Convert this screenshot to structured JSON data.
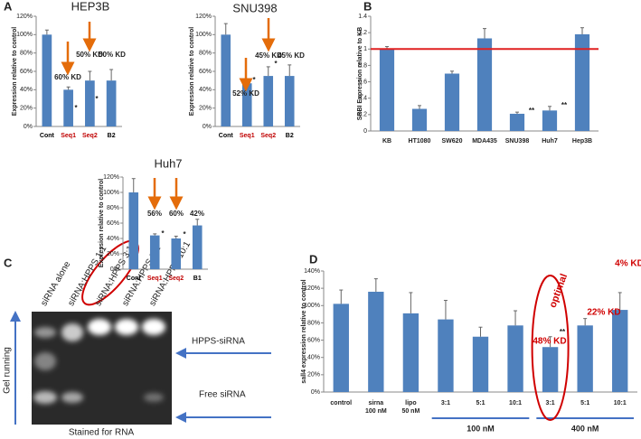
{
  "panels": [
    "A",
    "B",
    "C",
    "D"
  ],
  "chart_data": [
    {
      "type": "bar",
      "title": "HEP3B",
      "y_label": "Expression relative to control",
      "categories": [
        "Cont",
        "Seq1",
        "Seq2",
        "B2"
      ],
      "category_colors": [
        "#000000",
        "#c00000",
        "#c00000",
        "#000000"
      ],
      "values": [
        100,
        40,
        50,
        50
      ],
      "errors": [
        5,
        3,
        10,
        12
      ],
      "color": "#4f81bd",
      "ylim": [
        0,
        120
      ],
      "yticks": [
        {
          "value": 0,
          "label": "0%"
        },
        {
          "value": 20,
          "label": "20%"
        },
        {
          "value": 40,
          "label": "40%"
        },
        {
          "value": 60,
          "label": "60%"
        },
        {
          "value": 80,
          "label": "80%"
        },
        {
          "value": 100,
          "label": "100%"
        },
        {
          "value": 120,
          "label": "120%"
        }
      ],
      "annotations": [
        "60% KD",
        "50% KD",
        "50% KD",
        "*",
        "*"
      ]
    },
    {
      "type": "bar",
      "title": "SNU398",
      "y_label": "Expression relative to control",
      "categories": [
        "Cont",
        "Seq1",
        "Seq2",
        "B2"
      ],
      "category_colors": [
        "#000000",
        "#c00000",
        "#c00000",
        "#000000"
      ],
      "values": [
        100,
        47,
        55,
        55
      ],
      "errors": [
        12,
        4,
        10,
        12
      ],
      "color": "#4f81bd",
      "ylim": [
        0,
        120
      ],
      "yticks": [
        {
          "value": 0,
          "label": "0%"
        },
        {
          "value": 20,
          "label": "20%"
        },
        {
          "value": 40,
          "label": "40%"
        },
        {
          "value": 60,
          "label": "60%"
        },
        {
          "value": 80,
          "label": "80%"
        },
        {
          "value": 100,
          "label": "100%"
        },
        {
          "value": 120,
          "label": "120%"
        }
      ],
      "annotations": [
        "52% KD",
        "45% KD",
        "45% KD",
        "*",
        "*"
      ]
    },
    {
      "type": "bar",
      "title": "Huh7",
      "y_label": "Expression relative to control",
      "categories": [
        "Cont",
        "Seq1",
        "Seq2",
        "B1"
      ],
      "category_colors": [
        "#000000",
        "#c00000",
        "#c00000",
        "#000000"
      ],
      "values": [
        100,
        44,
        40,
        57
      ],
      "errors": [
        18,
        2,
        3,
        8
      ],
      "color": "#4f81bd",
      "ylim": [
        0,
        120
      ],
      "yticks": [
        {
          "value": 0,
          "label": "0%"
        },
        {
          "value": 20,
          "label": "20%"
        },
        {
          "value": 40,
          "label": "40%"
        },
        {
          "value": 60,
          "label": "60%"
        },
        {
          "value": 80,
          "label": "80%"
        },
        {
          "value": 100,
          "label": "100%"
        },
        {
          "value": 120,
          "label": "120%"
        }
      ],
      "annotations": [
        "56%",
        "60%",
        "42%",
        "*",
        "*"
      ]
    },
    {
      "type": "bar",
      "y_label": "SRBI Expression relative to KB",
      "categories": [
        "KB",
        "HT1080",
        "SW620",
        "MDA435",
        "SNU398",
        "Huh7",
        "Hep3B"
      ],
      "values": [
        1.0,
        0.27,
        0.7,
        1.13,
        0.21,
        0.25,
        1.18
      ],
      "errors": [
        0.03,
        0.04,
        0.03,
        0.12,
        0.02,
        0.05,
        0.08
      ],
      "color": "#4f81bd",
      "ylim": [
        0,
        1.4
      ],
      "yticks": [
        0,
        0.2,
        0.4,
        0.6,
        0.8,
        1,
        1.2,
        1.4
      ],
      "reference_line": 1,
      "reference_color": "#e02020",
      "annotations": [
        "**",
        "**"
      ]
    },
    {
      "type": "bar",
      "y_label": "sall4 expression relative to control",
      "categories": [
        "control",
        "sirna",
        "lipo",
        "3:1",
        "5:1",
        "10:1",
        "3:1",
        "5:1",
        "10:1"
      ],
      "category_notes": [
        null,
        "100 nM",
        "50 nM",
        null,
        null,
        null,
        null,
        null,
        null
      ],
      "groups": [
        "100 nM",
        "400 nM"
      ],
      "values": [
        102,
        116,
        91,
        84,
        64,
        77,
        52,
        77,
        95
      ],
      "errors": [
        16,
        15,
        24,
        22,
        11,
        17,
        12,
        8,
        20
      ],
      "color": "#4f81bd",
      "ylim": [
        0,
        140
      ],
      "yticks": [
        {
          "value": 0,
          "label": "0%"
        },
        {
          "value": 20,
          "label": "20%"
        },
        {
          "value": 40,
          "label": "40%"
        },
        {
          "value": 60,
          "label": "60%"
        },
        {
          "value": 80,
          "label": "80%"
        },
        {
          "value": 100,
          "label": "100%"
        },
        {
          "value": 120,
          "label": "120%"
        },
        {
          "value": 140,
          "label": "140%"
        }
      ],
      "annotations": [
        "48% KD",
        "22% KD",
        "4% KD",
        "optimal",
        "**"
      ]
    }
  ],
  "gel": {
    "lanes": [
      "siRNA alone",
      "siRNA:HPPS 1:1",
      "siRNA:HPPS 3:1",
      "siRNA:HPPS 5:1",
      "siRNA:HPPS 10:1"
    ],
    "bands": [
      "HPPS-siRNA",
      "Free siRNA"
    ],
    "axis_label": "Gel running",
    "caption": "Stained for RNA"
  }
}
